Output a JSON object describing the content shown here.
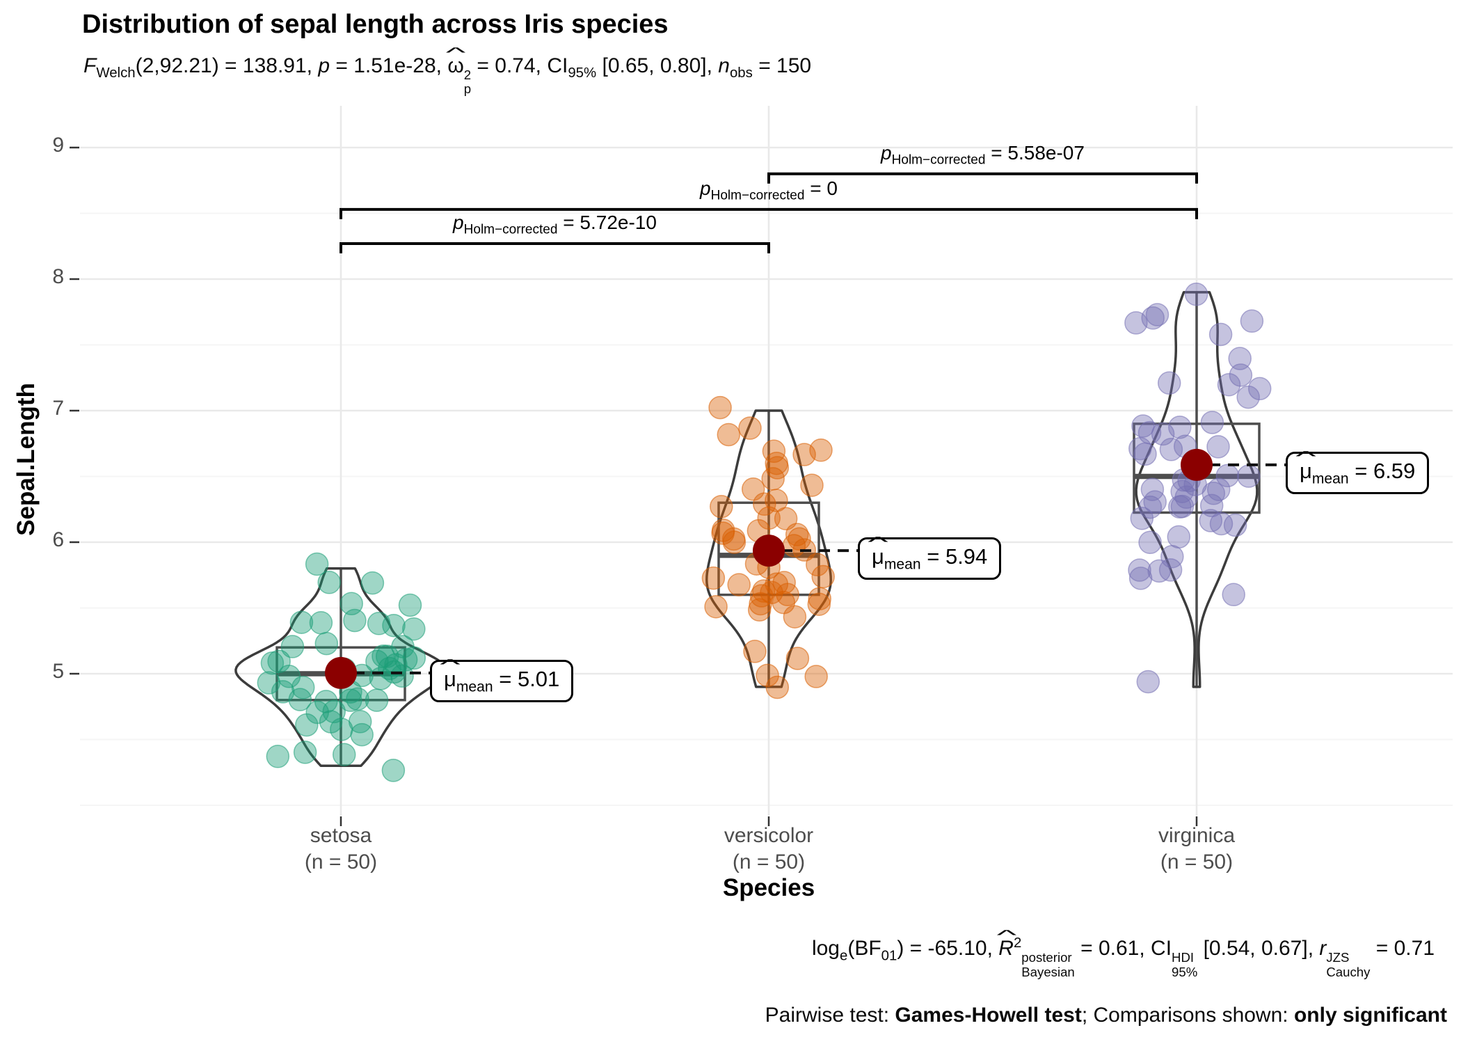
{
  "title": "Distribution of sepal length across Iris species",
  "hat_glyph": "^",
  "subtitle_segments": [
    {
      "t": "F",
      "i": true
    },
    {
      "t": "Welch",
      "sub": true
    },
    {
      "t": "(2,92.21) = 138.91, "
    },
    {
      "t": "p",
      "i": true
    },
    {
      "t": " = 1.51e-28, "
    },
    {
      "t": "ω",
      "hat": true
    },
    {
      "stack": [
        "2",
        "p"
      ]
    },
    {
      "t": " = 0.74, CI"
    },
    {
      "t": "95%",
      "sub": true
    },
    {
      "t": " [0.65, 0.80], "
    },
    {
      "t": "n",
      "i": true
    },
    {
      "t": "obs",
      "sub": true
    },
    {
      "t": " = 150"
    }
  ],
  "caption_segments": [
    {
      "t": "log"
    },
    {
      "t": "e",
      "sub": true
    },
    {
      "t": "(BF"
    },
    {
      "t": "01",
      "sub": true
    },
    {
      "t": ") = -65.10, "
    },
    {
      "t": "R",
      "i": true,
      "hat": true
    },
    {
      "t": "2",
      "sup": true
    },
    {
      "stack": [
        "posterior",
        "Bayesian"
      ]
    },
    {
      "t": " = 0.61, CI"
    },
    {
      "stack": [
        "HDI",
        "95%"
      ]
    },
    {
      "t": " [0.54, 0.67], "
    },
    {
      "t": "r",
      "i": true
    },
    {
      "stack": [
        "JZS",
        "Cauchy"
      ]
    },
    {
      "t": " = 0.71"
    }
  ],
  "pairwise_note_segments": [
    {
      "t": "Pairwise test: "
    },
    {
      "t": "Games-Howell test",
      "b": true
    },
    {
      "t": "; Comparisons shown: "
    },
    {
      "t": "only significant",
      "b": true
    }
  ],
  "axes": {
    "x_title": "Species",
    "y_title": "Sepal.Length",
    "y_tick_labels": [
      "5",
      "6",
      "7",
      "8",
      "9"
    ]
  },
  "mean_label_prefix_segments": [
    {
      "t": "μ",
      "hat": true
    },
    {
      "t": "mean",
      "sub": true
    },
    {
      "t": " = "
    }
  ],
  "p_label_prefix_segments": [
    {
      "t": "p",
      "i": true
    },
    {
      "t": "Holm−corrected",
      "sub": true
    },
    {
      "t": " = "
    }
  ],
  "colors": {
    "mean_dot": "#8B0000",
    "violin_outline": "#3C3C3C",
    "box_outline": "#4D4D4D",
    "whisker": "#4D4D4D",
    "grid_major": "#E9E9E9",
    "grid_minor": "#F5F5F5",
    "tick_mark": "#333333",
    "bracket": "#000000",
    "group_colors": [
      "#1B9E77",
      "#D95F02",
      "#7570B3"
    ]
  },
  "chart_data": {
    "type": "violin+box+jitter",
    "title": "Distribution of sepal length across Iris species",
    "xlabel": "Species",
    "ylabel": "Sepal.Length",
    "ylim": [
      3.92,
      9.32
    ],
    "y_major_ticks": [
      5,
      6,
      7,
      8,
      9
    ],
    "y_minor_ticks": [
      4.0,
      4.5,
      5.5,
      6.5,
      7.5,
      8.5
    ],
    "grid": true,
    "n_obs": 150,
    "groups": [
      {
        "name": "setosa",
        "x_label_lines": [
          "setosa",
          "(n = 50)"
        ],
        "n": 50,
        "color": "#1B9E77",
        "mean": 5.006,
        "mean_label": "5.01",
        "box": {
          "q1": 4.8,
          "median": 5.0,
          "q3": 5.2
        },
        "points": [
          5.1,
          4.9,
          4.7,
          4.6,
          5.0,
          5.4,
          4.6,
          5.0,
          4.4,
          4.9,
          5.4,
          4.8,
          4.8,
          4.3,
          5.8,
          5.7,
          5.4,
          5.1,
          5.7,
          5.1,
          5.4,
          5.1,
          4.6,
          5.1,
          4.8,
          5.0,
          5.0,
          5.2,
          5.2,
          4.7,
          4.8,
          5.4,
          5.2,
          5.5,
          4.9,
          5.0,
          5.5,
          4.9,
          4.4,
          5.1,
          5.0,
          4.5,
          4.4,
          5.0,
          5.1,
          4.8,
          5.1,
          4.6,
          5.3,
          5.0
        ]
      },
      {
        "name": "versicolor",
        "x_label_lines": [
          "versicolor",
          "(n = 50)"
        ],
        "n": 50,
        "color": "#D95F02",
        "mean": 5.936,
        "mean_label": "5.94",
        "box": {
          "q1": 5.6,
          "median": 5.9,
          "q3": 6.3
        },
        "points": [
          7.0,
          6.4,
          6.9,
          5.5,
          6.5,
          5.7,
          6.3,
          4.9,
          6.6,
          5.2,
          5.0,
          5.9,
          6.0,
          6.1,
          5.6,
          6.7,
          5.6,
          5.8,
          6.2,
          5.6,
          5.9,
          6.1,
          6.3,
          6.1,
          6.4,
          6.6,
          6.8,
          6.7,
          6.0,
          5.7,
          5.5,
          5.5,
          5.8,
          6.0,
          5.4,
          6.0,
          6.7,
          6.3,
          5.6,
          5.5,
          5.5,
          6.1,
          5.8,
          5.0,
          5.6,
          5.7,
          5.7,
          6.2,
          5.1,
          5.7
        ]
      },
      {
        "name": "virginica",
        "x_label_lines": [
          "virginica",
          "(n = 50)"
        ],
        "n": 50,
        "color": "#7570B3",
        "mean": 6.588,
        "mean_label": "6.59",
        "box": {
          "q1": 6.225,
          "median": 6.5,
          "q3": 6.9
        },
        "points": [
          6.3,
          5.8,
          7.1,
          6.3,
          6.5,
          7.6,
          4.9,
          7.3,
          6.7,
          7.2,
          6.5,
          6.4,
          6.8,
          5.7,
          5.8,
          6.4,
          6.5,
          7.7,
          7.7,
          6.0,
          6.9,
          5.6,
          7.7,
          6.3,
          6.7,
          7.2,
          6.2,
          6.1,
          6.4,
          7.2,
          7.4,
          7.9,
          6.4,
          6.3,
          6.1,
          7.7,
          6.3,
          6.4,
          6.0,
          6.9,
          6.7,
          6.9,
          5.8,
          6.8,
          6.7,
          6.7,
          6.3,
          6.5,
          6.2,
          5.9
        ]
      }
    ],
    "comparisons": [
      {
        "group_a": "versicolor",
        "group_b": "virginica",
        "a": 1,
        "b": 2,
        "p_value": "5.58e-07",
        "line_y_value": 8.8
      },
      {
        "group_a": "setosa",
        "group_b": "virginica",
        "a": 0,
        "b": 2,
        "p_value": "0",
        "line_y_value": 8.53
      },
      {
        "group_a": "setosa",
        "group_b": "versicolor",
        "a": 0,
        "b": 1,
        "p_value": "5.72e-10",
        "line_y_value": 8.27
      }
    ],
    "legend": "none"
  }
}
